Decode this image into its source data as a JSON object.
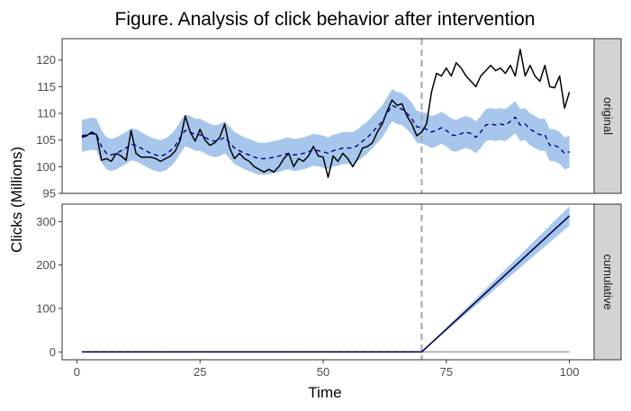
{
  "chart_data": {
    "type": "line",
    "title": "Figure. Analysis of click behavior after intervention",
    "xlabel": "Time",
    "ylabel": "Clicks (Millions)",
    "xlim": [
      -3,
      105
    ],
    "x_ticks": [
      0,
      25,
      50,
      75,
      100
    ],
    "intervention_x": 70,
    "colors": {
      "actual": "#000000",
      "predicted": "#00008b",
      "interval": "#a7c6ec",
      "intervention": "#a6a6a6",
      "zero": "#a6a6a6",
      "strip": "#d3d3d3"
    },
    "panels": [
      {
        "strip": "original",
        "ylim": [
          95,
          124
        ],
        "y_ticks": [
          95,
          100,
          105,
          110,
          115,
          120
        ],
        "x": [
          1,
          2,
          3,
          4,
          5,
          6,
          7,
          8,
          9,
          10,
          11,
          12,
          13,
          14,
          15,
          16,
          17,
          18,
          19,
          20,
          21,
          22,
          23,
          24,
          25,
          26,
          27,
          28,
          29,
          30,
          31,
          32,
          33,
          34,
          35,
          36,
          37,
          38,
          39,
          40,
          41,
          42,
          43,
          44,
          45,
          46,
          47,
          48,
          49,
          50,
          51,
          52,
          53,
          54,
          55,
          56,
          57,
          58,
          59,
          60,
          61,
          62,
          63,
          64,
          65,
          66,
          67,
          68,
          69,
          70,
          71,
          72,
          73,
          74,
          75,
          76,
          77,
          78,
          79,
          80,
          81,
          82,
          83,
          84,
          85,
          86,
          87,
          88,
          89,
          90,
          91,
          92,
          93,
          94,
          95,
          96,
          97,
          98,
          99,
          100
        ],
        "series": [
          {
            "name": "actual",
            "values": [
              105.5,
              105.8,
              106.5,
              106.0,
              101.2,
              101.5,
              101.0,
              102.5,
              102.0,
              101.2,
              106.8,
              102.5,
              101.8,
              101.8,
              101.8,
              101.5,
              101.0,
              101.5,
              102.0,
              103.0,
              105.0,
              109.5,
              106.5,
              104.8,
              107.0,
              105.0,
              104.0,
              104.5,
              105.5,
              108.0,
              103.5,
              101.5,
              102.5,
              101.5,
              101.0,
              100.0,
              99.5,
              99.0,
              99.5,
              99.0,
              100.0,
              101.5,
              102.5,
              100.0,
              101.5,
              101.0,
              102.0,
              103.8,
              102.0,
              101.8,
              98.0,
              102.0,
              101.0,
              102.5,
              101.5,
              100.0,
              101.5,
              103.5,
              103.8,
              104.5,
              106.5,
              108.0,
              110.5,
              112.5,
              111.5,
              111.8,
              109.5,
              108.0,
              105.8,
              106.5,
              108.0,
              114.0,
              117.5,
              117.0,
              118.5,
              117.0,
              119.5,
              118.5,
              117.0,
              116.0,
              115.0,
              117.0,
              118.0,
              119.0,
              118.0,
              118.5,
              117.5,
              119.0,
              117.0,
              122.0,
              117.0,
              119.0,
              117.0,
              116.0,
              119.0,
              115.0,
              114.8,
              117.0,
              111.0,
              114.0
            ]
          },
          {
            "name": "predicted",
            "values": [
              105.8,
              106.0,
              106.2,
              106.0,
              103.8,
              102.5,
              102.2,
              102.5,
              103.0,
              103.5,
              104.2,
              104.0,
              103.5,
              103.0,
              102.5,
              102.2,
              102.0,
              102.3,
              103.0,
              104.0,
              105.5,
              106.8,
              106.5,
              106.0,
              106.0,
              105.5,
              105.0,
              104.8,
              105.0,
              105.5,
              104.5,
              103.5,
              103.0,
              102.5,
              102.2,
              101.8,
              101.5,
              101.5,
              101.6,
              101.8,
              102.0,
              102.3,
              102.5,
              102.2,
              102.3,
              102.5,
              102.8,
              103.2,
              103.0,
              102.8,
              102.5,
              103.0,
              103.2,
              103.5,
              103.5,
              103.5,
              104.0,
              104.8,
              105.5,
              106.5,
              107.5,
              108.5,
              110.0,
              111.5,
              111.0,
              110.8,
              110.0,
              109.0,
              107.5,
              107.3,
              107.0,
              106.5,
              106.8,
              107.3,
              106.8,
              106.0,
              105.8,
              106.2,
              106.5,
              106.2,
              105.5,
              106.5,
              107.8,
              108.0,
              107.8,
              108.0,
              107.8,
              108.5,
              109.3,
              107.8,
              108.0,
              107.0,
              106.5,
              106.0,
              106.0,
              104.0,
              104.0,
              103.5,
              102.5,
              102.8
            ]
          }
        ],
        "interval_half_width": 3.0
      },
      {
        "strip": "cumulative",
        "ylim": [
          -18,
          340
        ],
        "y_ticks": [
          0,
          100,
          200,
          300
        ],
        "series": [
          {
            "name": "actual",
            "x": [
              1,
              70,
              100
            ],
            "values": [
              0,
              0,
              313
            ]
          },
          {
            "name": "predicted",
            "x": [
              1,
              70,
              100
            ],
            "values": [
              0,
              0,
              313
            ]
          }
        ],
        "interval": {
          "x": [
            70,
            100
          ],
          "lower": [
            0,
            291
          ],
          "upper": [
            0,
            335
          ]
        },
        "zero_line": {
          "x": [
            70,
            100
          ],
          "value": 0
        }
      }
    ]
  }
}
